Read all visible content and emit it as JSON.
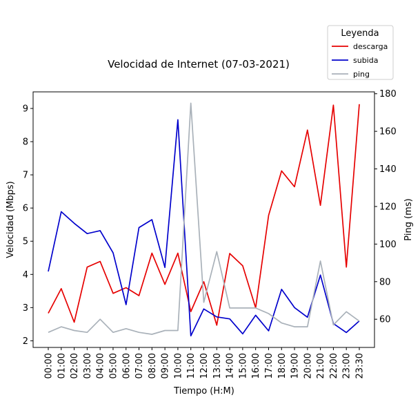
{
  "chart_data": {
    "type": "line",
    "title": "Velocidad de Internet (07-03-2021)",
    "xlabel": "Tiempo (H:M)",
    "ylabel": "Velocidad (Mbps)",
    "y2label": "Ping (ms)",
    "ylim": [
      1.8,
      9.5
    ],
    "y2lim": [
      45,
      181
    ],
    "yticks": [
      2,
      3,
      4,
      5,
      6,
      7,
      8,
      9
    ],
    "y2ticks": [
      60,
      80,
      100,
      120,
      140,
      160,
      180
    ],
    "categories": [
      "00:00",
      "01:00",
      "02:00",
      "03:00",
      "04:00",
      "05:00",
      "06:00",
      "07:00",
      "08:00",
      "09:00",
      "10:00",
      "11:00",
      "12:00",
      "13:00",
      "14:00",
      "15:00",
      "16:00",
      "17:00",
      "18:00",
      "19:00",
      "20:00",
      "21:00",
      "22:00",
      "23:00",
      "23:30"
    ],
    "legend": {
      "title": "Leyenda",
      "position": "top-right"
    },
    "series": [
      {
        "name": "descarga",
        "axis": "left",
        "color": "#e60000",
        "values": [
          2.83,
          3.57,
          2.56,
          4.22,
          4.39,
          3.43,
          3.6,
          3.36,
          4.64,
          3.7,
          4.64,
          2.88,
          3.78,
          2.47,
          4.63,
          4.26,
          2.99,
          5.78,
          7.12,
          6.64,
          8.35,
          6.08,
          9.1,
          4.22,
          9.13
        ]
      },
      {
        "name": "subida",
        "axis": "left",
        "color": "#0000cc",
        "values": [
          4.09,
          5.89,
          5.54,
          5.23,
          5.32,
          4.65,
          3.09,
          5.41,
          5.65,
          4.21,
          8.66,
          2.15,
          2.96,
          2.72,
          2.66,
          2.21,
          2.77,
          2.3,
          3.55,
          3.0,
          2.71,
          3.98,
          2.52,
          2.25,
          2.6
        ]
      },
      {
        "name": "ping",
        "axis": "right",
        "color": "#a9b1b9",
        "values": [
          53,
          56,
          54,
          53,
          60,
          53,
          55,
          53,
          52,
          54,
          54,
          175,
          69,
          96,
          66,
          66,
          66,
          63,
          58,
          56,
          56,
          91,
          57,
          64,
          59
        ]
      }
    ]
  }
}
